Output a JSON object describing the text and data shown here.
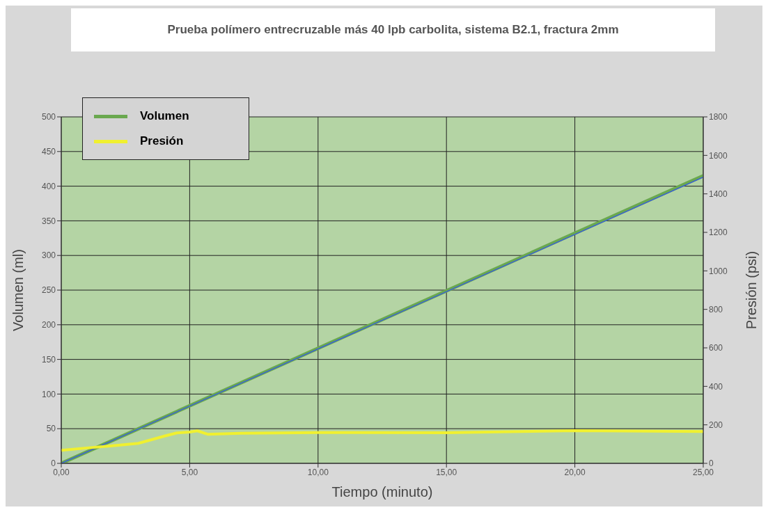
{
  "chart_data": {
    "type": "line",
    "title": "Prueba polímero entrecruzable más 40 lpb carbolita, sistema B2.1, fractura 2mm",
    "xlabel": "Tiempo (minuto)",
    "ylabel": "Volumen  (ml)",
    "y2label": "Presión (psi)",
    "xlim": [
      0,
      25
    ],
    "xticks": [
      {
        "value": 0,
        "label": "0,00"
      },
      {
        "value": 5,
        "label": "5,00"
      },
      {
        "value": 10,
        "label": "10,00"
      },
      {
        "value": 15,
        "label": "15,00"
      },
      {
        "value": 20,
        "label": "20,00"
      },
      {
        "value": 25,
        "label": "25,00"
      }
    ],
    "ylim": [
      0,
      500
    ],
    "yticks": [
      0,
      50,
      100,
      150,
      200,
      250,
      300,
      350,
      400,
      450,
      500
    ],
    "y2lim": [
      0,
      1800
    ],
    "y2ticks": [
      0,
      200,
      400,
      600,
      800,
      1000,
      1200,
      1400,
      1600,
      1800
    ],
    "series": [
      {
        "name": "Volumen",
        "color": "#6aa84f",
        "x": [
          0,
          25
        ],
        "values": [
          0,
          415
        ]
      },
      {
        "color": "#3355ee",
        "x": [
          0,
          25
        ],
        "values": [
          0,
          413
        ]
      },
      {
        "name": "Presión",
        "color": "#f0f030",
        "axis": "y2",
        "x": [
          0,
          1,
          2,
          3,
          4,
          4.5,
          5,
          5.3,
          5.7,
          7,
          10,
          15,
          20,
          25
        ],
        "values": [
          68,
          80,
          91,
          104,
          141,
          158,
          163,
          169,
          151,
          156,
          160,
          159,
          170,
          165
        ]
      }
    ],
    "grid": true,
    "legend": "top left",
    "line_style": "solid",
    "marker": "none"
  }
}
